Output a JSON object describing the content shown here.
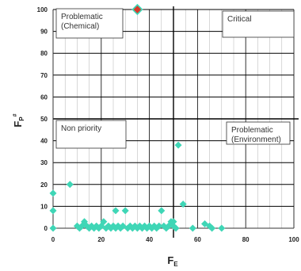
{
  "chart_data": {
    "type": "scatter",
    "xlabel": "F",
    "xlabel_sub": "E",
    "ylabel": "F",
    "ylabel_sub": "P",
    "ylabel_sup": "#",
    "xlim": [
      0,
      100
    ],
    "ylim": [
      0,
      100
    ],
    "x_ticks": [
      0,
      20,
      40,
      60,
      80,
      100
    ],
    "y_ticks": [
      0,
      10,
      20,
      30,
      40,
      50,
      60,
      70,
      80,
      90,
      100
    ],
    "grid": true,
    "threshold_x": 50,
    "threshold_y": 50,
    "quadrant_labels": {
      "top_left": [
        "Problematic",
        "(Chemical)"
      ],
      "top_right": [
        "Critical"
      ],
      "bottom_left": [
        "Non priority"
      ],
      "bottom_right": [
        "Problematic",
        "(Environment)"
      ]
    },
    "colors": {
      "point": "#3fd6b6",
      "highlight_point": "#d93a2b",
      "axis": "#333333",
      "grid": "#000000"
    },
    "highlight_point": {
      "x": 35,
      "y": 100
    },
    "points": [
      {
        "x": 0,
        "y": 0
      },
      {
        "x": 0,
        "y": 8
      },
      {
        "x": 0,
        "y": 16
      },
      {
        "x": 7,
        "y": 20
      },
      {
        "x": 10,
        "y": 1
      },
      {
        "x": 11,
        "y": 0
      },
      {
        "x": 12,
        "y": 1
      },
      {
        "x": 13,
        "y": 3
      },
      {
        "x": 14,
        "y": 1
      },
      {
        "x": 15,
        "y": 0
      },
      {
        "x": 16,
        "y": 1
      },
      {
        "x": 17,
        "y": 0
      },
      {
        "x": 18,
        "y": 1
      },
      {
        "x": 19,
        "y": 0
      },
      {
        "x": 20,
        "y": 1
      },
      {
        "x": 21,
        "y": 3
      },
      {
        "x": 22,
        "y": 0
      },
      {
        "x": 23,
        "y": 1
      },
      {
        "x": 24,
        "y": 0
      },
      {
        "x": 25,
        "y": 1
      },
      {
        "x": 26,
        "y": 0
      },
      {
        "x": 26,
        "y": 8
      },
      {
        "x": 27,
        "y": 1
      },
      {
        "x": 28,
        "y": 0
      },
      {
        "x": 29,
        "y": 1
      },
      {
        "x": 30,
        "y": 8
      },
      {
        "x": 31,
        "y": 0
      },
      {
        "x": 32,
        "y": 1
      },
      {
        "x": 33,
        "y": 0
      },
      {
        "x": 34,
        "y": 1
      },
      {
        "x": 35,
        "y": 0
      },
      {
        "x": 36,
        "y": 1
      },
      {
        "x": 37,
        "y": 0
      },
      {
        "x": 38,
        "y": 1
      },
      {
        "x": 39,
        "y": 0
      },
      {
        "x": 40,
        "y": 1
      },
      {
        "x": 41,
        "y": 0
      },
      {
        "x": 42,
        "y": 1
      },
      {
        "x": 43,
        "y": 0
      },
      {
        "x": 44,
        "y": 1
      },
      {
        "x": 45,
        "y": 8
      },
      {
        "x": 46,
        "y": 1
      },
      {
        "x": 47,
        "y": 0
      },
      {
        "x": 48,
        "y": 1
      },
      {
        "x": 49,
        "y": 3
      },
      {
        "x": 50,
        "y": 1
      },
      {
        "x": 50,
        "y": 3
      },
      {
        "x": 51,
        "y": 0
      },
      {
        "x": 52,
        "y": 38
      },
      {
        "x": 54,
        "y": 11
      },
      {
        "x": 58,
        "y": 0
      },
      {
        "x": 63,
        "y": 2
      },
      {
        "x": 65,
        "y": 1
      },
      {
        "x": 66,
        "y": 0
      },
      {
        "x": 70,
        "y": 0
      }
    ]
  }
}
